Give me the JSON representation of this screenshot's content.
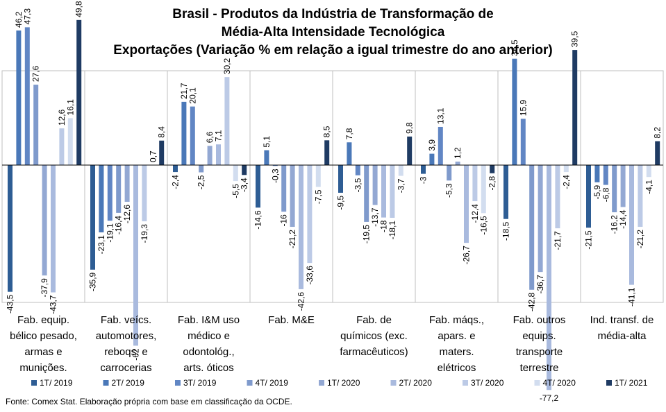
{
  "chart_data": {
    "type": "bar",
    "title_lines": [
      "Brasil - Produtos da Indústria de Transformação de",
      "Média-Alta Intensidade Tecnológica",
      "Exportações (Variação % em relação a igual trimestre do ano anterior)"
    ],
    "categories": [
      [
        "Fab. equip.",
        "bélico pesado,",
        "armas e",
        "munições."
      ],
      [
        "Fab. veícs.",
        "automotores,",
        "reboqs. e",
        "carrocerias"
      ],
      [
        "Fab. I&M uso",
        "médico e",
        "odontológ.,",
        "arts. óticos"
      ],
      [
        "Fab. M&E"
      ],
      [
        "Fab. de",
        "químicos (exc.",
        "farmacêuticos)"
      ],
      [
        "Fab. máqs.,",
        "apars. e",
        "maters.",
        "elétricos"
      ],
      [
        "Fab. outros",
        "equips.",
        "transporte",
        "terrestre"
      ],
      [
        "Ind. transf. de",
        "média-alta"
      ]
    ],
    "series": [
      {
        "name": "1T/ 2019",
        "color": "#2e5d94",
        "values": [
          -43.5,
          -35.9,
          -2.4,
          -14.6,
          -9.5,
          -3.0,
          -18.5,
          -21.5
        ]
      },
      {
        "name": "2T/ 2019",
        "color": "#4a78b8",
        "values": [
          46.2,
          -23.1,
          21.7,
          5.1,
          7.8,
          3.9,
          36.5,
          -5.9
        ]
      },
      {
        "name": "3T/ 2019",
        "color": "#6186c4",
        "values": [
          47.3,
          -19.1,
          20.1,
          -0.3,
          -3.5,
          13.1,
          15.9,
          -6.8
        ]
      },
      {
        "name": "4T/ 2019",
        "color": "#7f9acc",
        "values": [
          27.6,
          -16.4,
          -2.5,
          -16.0,
          -19.5,
          -5.3,
          -42.8,
          -16.2
        ]
      },
      {
        "name": "1T/ 2020",
        "color": "#93a8d3",
        "values": [
          -37.9,
          -12.6,
          6.6,
          -21.2,
          -13.7,
          1.2,
          -36.7,
          -14.4
        ]
      },
      {
        "name": "2T/ 2020",
        "color": "#a9bade",
        "values": [
          -43.7,
          -62.0,
          7.1,
          -42.6,
          -18.0,
          -26.7,
          -77.2,
          -41.1
        ]
      },
      {
        "name": "3T/ 2020",
        "color": "#bccae6",
        "values": [
          12.6,
          -19.3,
          30.2,
          -33.6,
          -18.1,
          -12.4,
          -21.7,
          -21.2
        ]
      },
      {
        "name": "4T/ 2020",
        "color": "#d2ddef",
        "values": [
          16.1,
          null,
          -5.5,
          -7.5,
          -3.7,
          -16.5,
          -2.4,
          -4.1
        ]
      },
      {
        "name": "1T/ 2021",
        "color": "#1f3b63",
        "values": [
          49.8,
          8.4,
          -3.4,
          8.5,
          9.8,
          -2.8,
          39.5,
          8.2
        ]
      }
    ],
    "extra_labels": [
      {
        "category_index": 1,
        "text": "0,7"
      }
    ],
    "ylim": [
      -80,
      52
    ],
    "grid": false,
    "legend_position": "bottom"
  },
  "source": "Fonte: Comex Stat. Elaboração própria com base em classificação da OCDE."
}
